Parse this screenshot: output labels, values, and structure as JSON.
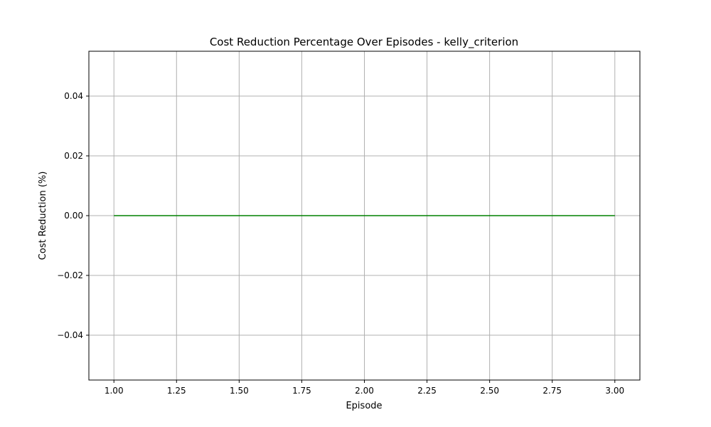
{
  "chart_data": {
    "type": "line",
    "title": "Cost Reduction Percentage Over Episodes - kelly_criterion",
    "xlabel": "Episode",
    "ylabel": "Cost Reduction (%)",
    "xlim": [
      0.9,
      3.1
    ],
    "ylim": [
      -0.055,
      0.055
    ],
    "x_ticks": [
      1.0,
      1.25,
      1.5,
      1.75,
      2.0,
      2.25,
      2.5,
      2.75,
      3.0
    ],
    "x_tick_labels": [
      "1.00",
      "1.25",
      "1.50",
      "1.75",
      "2.00",
      "2.25",
      "2.50",
      "2.75",
      "3.00"
    ],
    "y_ticks": [
      -0.04,
      -0.02,
      0.0,
      0.02,
      0.04
    ],
    "y_tick_labels": [
      "−0.04",
      "−0.02",
      "0.00",
      "0.02",
      "0.04"
    ],
    "grid": true,
    "series": [
      {
        "x": [
          1,
          2,
          3
        ],
        "values": [
          0.0,
          0.0,
          0.0
        ],
        "color": "#008000"
      }
    ]
  }
}
